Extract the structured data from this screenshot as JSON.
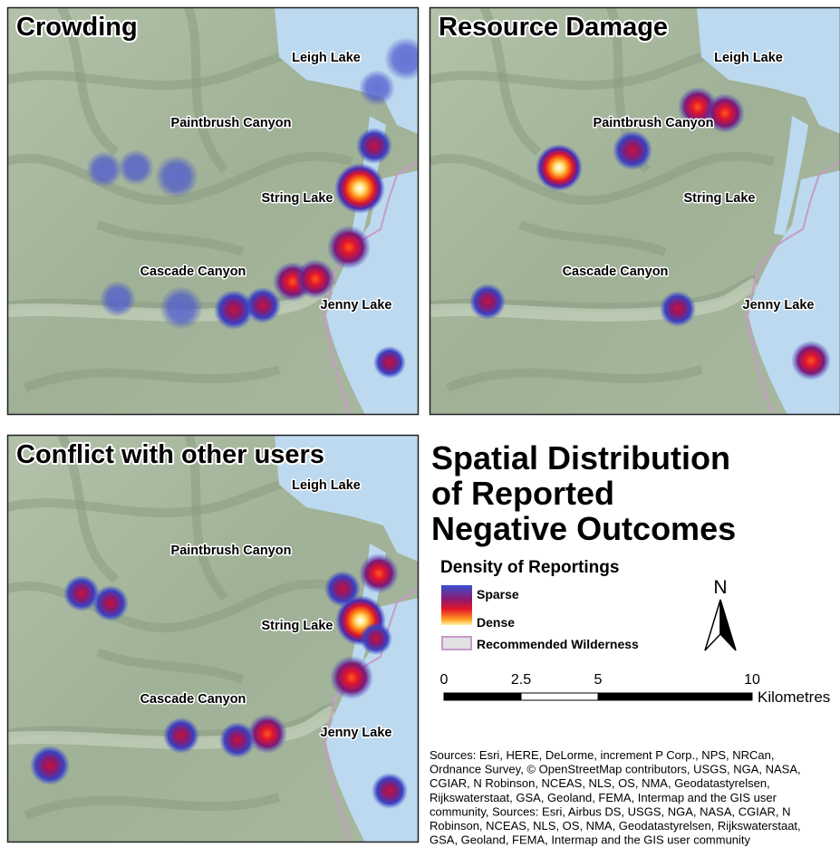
{
  "panels": [
    {
      "title": "Crowding",
      "labels": [
        "Leigh Lake",
        "Paintbrush Canyon",
        "String Lake",
        "Cascade Canyon",
        "Jenny Lake"
      ]
    },
    {
      "title": "Resource Damage",
      "labels": [
        "Leigh Lake",
        "Paintbrush Canyon",
        "String Lake",
        "Cascade Canyon",
        "Jenny Lake"
      ]
    },
    {
      "title": "Conflict with other users",
      "labels": [
        "Leigh Lake",
        "Paintbrush Canyon",
        "String Lake",
        "Cascade Canyon",
        "Jenny Lake"
      ]
    }
  ],
  "title": [
    "Spatial Distribution",
    "of Reported",
    "Negative Outcomes"
  ],
  "legend": {
    "title": "Density of Reportings",
    "items": [
      "Sparse",
      "Dense",
      "Recommended Wilderness"
    ]
  },
  "north": "N",
  "scale_bar": {
    "ticks": [
      0,
      2.5,
      5,
      10
    ],
    "unit": "Kilometres"
  },
  "sources": [
    "Sources: Esri, HERE, DeLorme, increment P Corp., NPS, NRCan,",
    "Ordnance Survey, © OpenStreetMap contributors, USGS, NGA, NASA,",
    "CGIAR, N Robinson, NCEAS, NLS, OS, NMA, Geodatastyrelsen,",
    "Rijkswaterstaat, GSA, Geoland, FEMA, Intermap and the GIS user",
    "community, Sources: Esri, Airbus DS, USGS, NGA, NASA, CGIAR, N",
    "Robinson, NCEAS, NLS, OS, NMA, Geodatastyrelsen, Rijkswaterstaat,",
    "GSA, Geoland, FEMA, Intermap and the GIS user community"
  ]
}
